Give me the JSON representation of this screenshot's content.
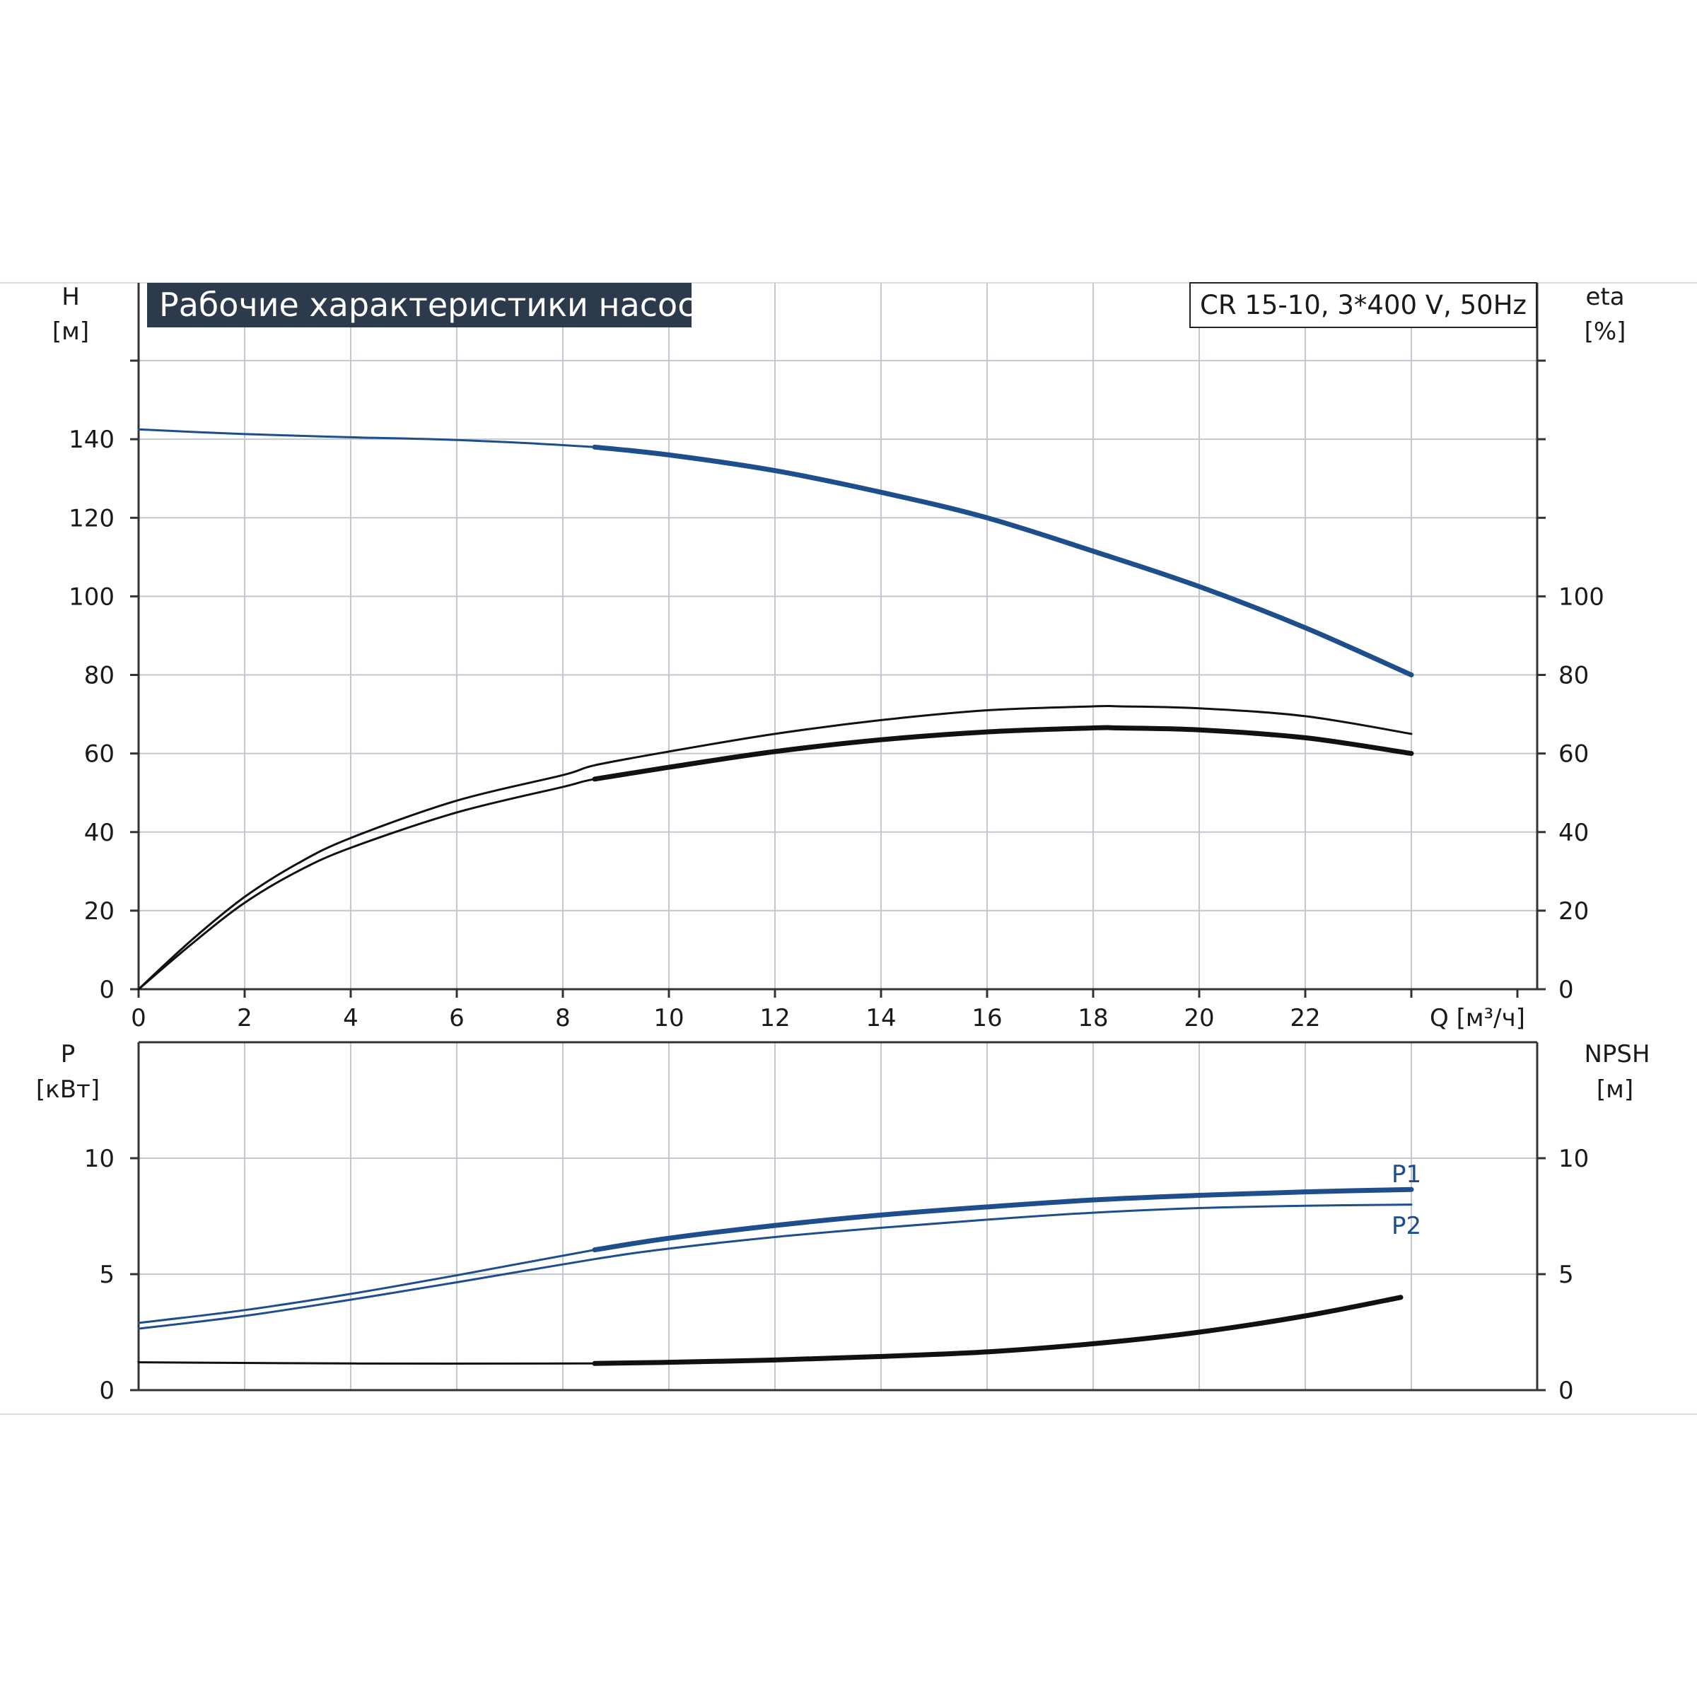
{
  "title": "Рабочие характеристики насоса",
  "model": "CR 15-10, 3*400 V, 50Hz",
  "colors": {
    "grid": "#c3c7cf",
    "axis": "#333333",
    "title_bg": "#2d3a4c",
    "blue": "#1f4e8c",
    "black": "#111111"
  },
  "chart_data": [
    {
      "name": "upper",
      "type": "line",
      "x_axis": {
        "label": "Q [м³/ч]",
        "ticks": [
          "0",
          "2",
          "4",
          "6",
          "8",
          "10",
          "12",
          "14",
          "16",
          "18",
          "20",
          "22"
        ],
        "range": [
          0,
          26
        ]
      },
      "y_left": {
        "label_line1": "H",
        "label_line2": "[м]",
        "ticks": [
          "0",
          "20",
          "40",
          "60",
          "80",
          "100",
          "120",
          "140"
        ],
        "range": [
          0,
          160
        ]
      },
      "y_right": {
        "label_line1": "eta",
        "label_line2": "[%]",
        "ticks": [
          "0",
          "20",
          "40",
          "60",
          "80",
          "100"
        ],
        "range": [
          0,
          160
        ]
      },
      "grid": true,
      "series": [
        {
          "id": "H",
          "color": "#1f4e8c",
          "bold_from": 8.6,
          "x": [
            0,
            2,
            4,
            6,
            8.6,
            10,
            12,
            14,
            16,
            18,
            20,
            22,
            24
          ],
          "y": [
            142.5,
            141.3,
            140.5,
            139.8,
            138,
            136,
            132,
            126.5,
            120,
            111.5,
            102.5,
            92,
            80
          ]
        },
        {
          "id": "eta-upper",
          "color": "#111111",
          "bold_from": 99,
          "x": [
            0,
            1,
            2,
            3,
            4,
            6,
            8,
            8.6,
            10,
            12,
            14,
            16,
            18,
            18.5,
            20,
            22,
            24
          ],
          "y": [
            0,
            12.5,
            23.5,
            32,
            38.5,
            48,
            54.5,
            57,
            60.5,
            65,
            68.5,
            71,
            72,
            72,
            71.5,
            69.5,
            65
          ]
        },
        {
          "id": "eta-lower",
          "color": "#111111",
          "bold_from": 8.6,
          "x": [
            0,
            1,
            2,
            3,
            4,
            6,
            8,
            8.6,
            10,
            12,
            14,
            16,
            18,
            18.5,
            20,
            22,
            24
          ],
          "y": [
            0,
            11.5,
            22,
            30,
            36,
            45,
            51.5,
            53.5,
            56.5,
            60.5,
            63.5,
            65.5,
            66.5,
            66.5,
            66,
            64,
            60
          ]
        }
      ]
    },
    {
      "name": "lower",
      "type": "line",
      "x_axis": {
        "range": [
          0,
          26
        ]
      },
      "y_left": {
        "label_line1": "P",
        "label_line2": "[кВт]",
        "ticks": [
          "0",
          "5",
          "10"
        ],
        "range": [
          0,
          15
        ]
      },
      "y_right": {
        "label_line1": "NPSH",
        "label_line2": "[м]",
        "ticks": [
          "0",
          "5",
          "10"
        ],
        "range": [
          0,
          15
        ]
      },
      "grid": true,
      "series": [
        {
          "id": "P1",
          "name": "P1",
          "color": "#1f4e8c",
          "bold_from": 8.6,
          "x": [
            0,
            2,
            4,
            6,
            8.6,
            10,
            12,
            14,
            16,
            18,
            20,
            22,
            24
          ],
          "y": [
            2.9,
            3.45,
            4.15,
            4.95,
            6.05,
            6.55,
            7.1,
            7.55,
            7.9,
            8.2,
            8.4,
            8.55,
            8.65
          ]
        },
        {
          "id": "P2",
          "name": "P2",
          "color": "#1f4e8c",
          "bold_from": 99,
          "x": [
            0,
            2,
            4,
            6,
            8.6,
            10,
            12,
            14,
            16,
            18,
            20,
            22,
            24
          ],
          "y": [
            2.65,
            3.2,
            3.9,
            4.65,
            5.65,
            6.1,
            6.6,
            7.0,
            7.35,
            7.65,
            7.85,
            7.95,
            8.0
          ]
        },
        {
          "id": "NPSH",
          "color": "#111111",
          "bold_from": 8.6,
          "x": [
            0,
            4,
            8.6,
            10,
            12,
            14,
            16,
            18,
            20,
            22,
            23.8
          ],
          "y": [
            1.2,
            1.15,
            1.15,
            1.2,
            1.3,
            1.45,
            1.65,
            2.0,
            2.5,
            3.2,
            4.0
          ]
        }
      ]
    }
  ]
}
